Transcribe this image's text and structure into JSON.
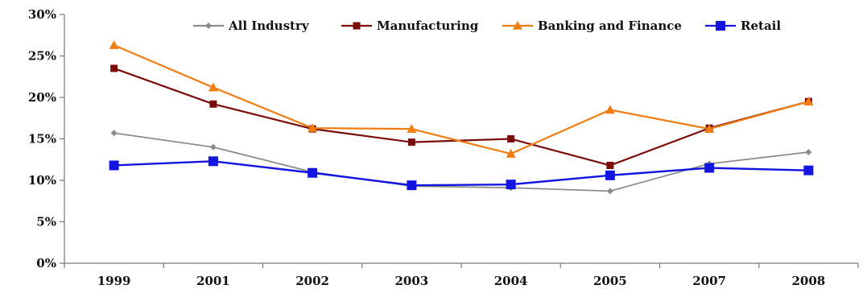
{
  "chart_data": {
    "type": "line",
    "title": "",
    "xlabel": "",
    "ylabel": "",
    "categories": [
      "1999",
      "2001",
      "2002",
      "2003",
      "2004",
      "2005",
      "2007",
      "2008"
    ],
    "ylim": [
      0,
      30
    ],
    "yticks": [
      0,
      5,
      10,
      15,
      20,
      25,
      30
    ],
    "ytick_labels": [
      "0%",
      "5%",
      "10%",
      "15%",
      "20%",
      "25%",
      "30%"
    ],
    "grid": false,
    "legend_position": "top",
    "series": [
      {
        "name": "All Industry",
        "color": "#8c8c8c",
        "marker": "diamond",
        "values": [
          15.7,
          14.0,
          11.0,
          9.3,
          9.1,
          8.7,
          12.0,
          13.4
        ]
      },
      {
        "name": "Manufacturing",
        "color": "#7b0c0c",
        "marker": "square",
        "values": [
          23.5,
          19.2,
          16.2,
          14.6,
          15.0,
          11.8,
          16.3,
          19.5
        ]
      },
      {
        "name": "Banking and Finance",
        "color": "#ef7d12",
        "marker": "triangle",
        "values": [
          26.3,
          21.2,
          16.3,
          16.2,
          13.2,
          18.5,
          16.2,
          19.5
        ]
      },
      {
        "name": "Retail",
        "color": "#1414e0",
        "marker": "bigsquare",
        "values": [
          11.8,
          12.3,
          10.9,
          9.4,
          9.5,
          10.6,
          11.5,
          11.2
        ]
      }
    ]
  }
}
